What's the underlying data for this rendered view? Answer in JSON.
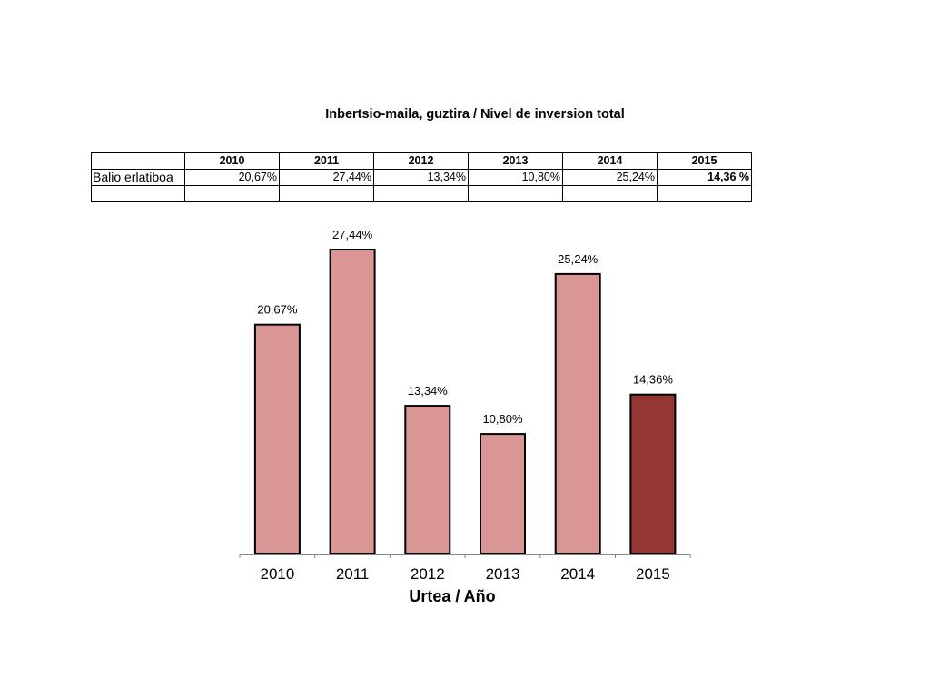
{
  "table": {
    "row_label": "Balio erlatiboa",
    "years": [
      "2010",
      "2011",
      "2012",
      "2013",
      "2014",
      "2015"
    ],
    "values": [
      "20,67%",
      "27,44%",
      "13,34%",
      "10,80%",
      "25,24%",
      "14,36 %"
    ]
  },
  "chart_data": {
    "type": "bar",
    "title": "Inbertsio-maila, guztira / Nivel de inversion total",
    "categories": [
      "2010",
      "2011",
      "2012",
      "2013",
      "2014",
      "2015"
    ],
    "values": [
      20.67,
      27.44,
      13.34,
      10.8,
      25.24,
      14.36
    ],
    "data_labels": [
      "20,67%",
      "27,44%",
      "13,34%",
      "10,80%",
      "25,24%",
      "14,36%"
    ],
    "xlabel": "Urtea / Año",
    "ylabel": "",
    "ylim": [
      0,
      27.44
    ],
    "grid": false,
    "legend": "none",
    "colors": {
      "bar": "#DA9694",
      "highlight_bar": "#963634",
      "bar_outline": "#000000"
    },
    "highlight_category": "2015"
  }
}
